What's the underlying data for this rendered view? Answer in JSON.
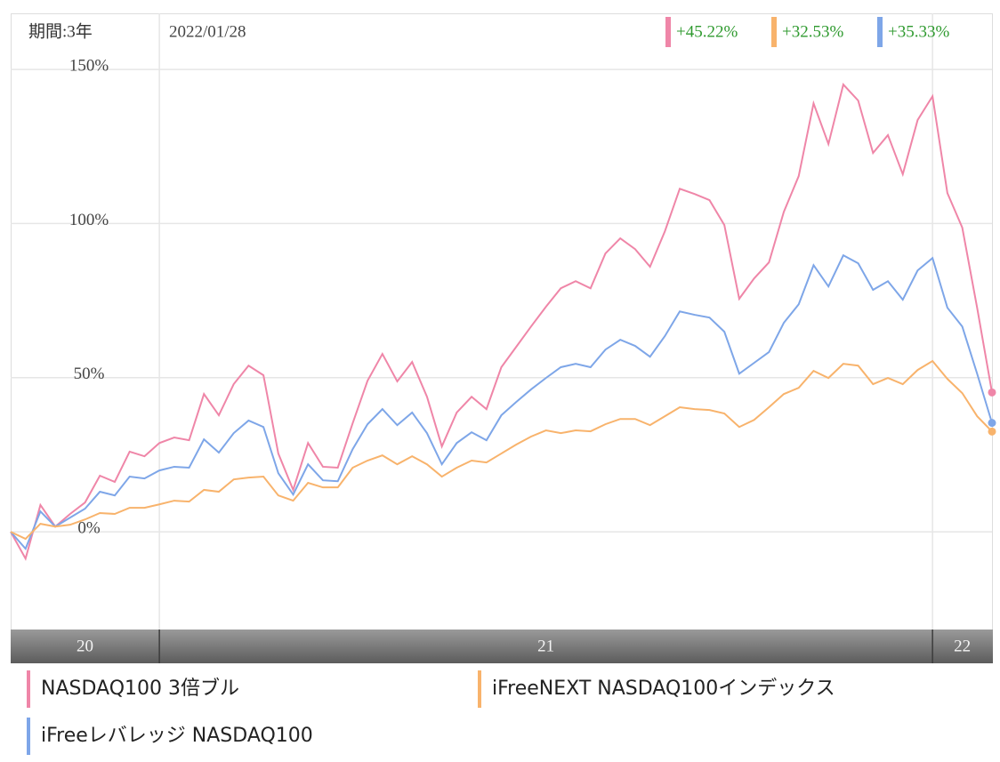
{
  "chart_data": {
    "type": "line",
    "period": "期間:3年",
    "date": "2022/01/28",
    "x": [
      0,
      1,
      2,
      3,
      4,
      5,
      6,
      7,
      8,
      9,
      10,
      11,
      12,
      13,
      14,
      15,
      16,
      17,
      18,
      19,
      20,
      21,
      22,
      23,
      24,
      25,
      26,
      27,
      28,
      29,
      30,
      31,
      32,
      33,
      34,
      35,
      36,
      37,
      38,
      39,
      40,
      41,
      42,
      43,
      44,
      45,
      46,
      47,
      48,
      49,
      50,
      51,
      52,
      53,
      54,
      55,
      56,
      57,
      58,
      59,
      60,
      61,
      62,
      63,
      64,
      65,
      66
    ],
    "xlim": [
      0,
      66
    ],
    "x_bands": [
      {
        "label": "20",
        "start": 0,
        "end": 10
      },
      {
        "label": "21",
        "start": 10,
        "end": 62
      },
      {
        "label": "22",
        "start": 62,
        "end": 66
      }
    ],
    "ylim": [
      -31.7,
      168.2
    ],
    "yticks": [
      {
        "value": 0,
        "label": "0%"
      },
      {
        "value": 50,
        "label": "50%"
      },
      {
        "value": 100,
        "label": "100%"
      },
      {
        "value": 150,
        "label": "150%"
      }
    ],
    "grid": true,
    "series": [
      {
        "name": "NASDAQ100 3倍ブル",
        "color": "#ef86a8",
        "end_label": "+45.22%",
        "values": [
          0,
          -8.7,
          8.7,
          1.7,
          5.8,
          9.5,
          18.2,
          16.2,
          26.0,
          24.5,
          28.8,
          30.6,
          29.7,
          44.7,
          37.8,
          47.9,
          53.9,
          50.8,
          25.4,
          13.6,
          28.8,
          21.1,
          20.8,
          35.2,
          49.0,
          57.7,
          48.8,
          55.1,
          43.8,
          27.7,
          38.7,
          43.8,
          39.8,
          53.4,
          60.0,
          66.6,
          73.0,
          79.0,
          81.3,
          79.0,
          90.3,
          95.2,
          91.7,
          86.0,
          97.5,
          111.3,
          109.6,
          107.6,
          99.5,
          75.6,
          82.2,
          87.4,
          103.8,
          115.4,
          139.0,
          125.8,
          145.1,
          139.9,
          122.9,
          128.7,
          116.0,
          133.6,
          141.3,
          109.9,
          98.7,
          72.7,
          45.22
        ]
      },
      {
        "name": "iFreeレバレッジ NASDAQ100",
        "color": "#7ea6e8",
        "end_label": "+35.33%",
        "values": [
          0,
          -5.5,
          6.6,
          1.7,
          4.6,
          7.5,
          13.0,
          11.8,
          17.9,
          17.3,
          19.9,
          21.1,
          20.8,
          30.0,
          25.7,
          32.0,
          36.1,
          34.0,
          19.0,
          12.1,
          21.9,
          16.7,
          16.4,
          26.8,
          34.9,
          39.8,
          34.6,
          38.7,
          32.0,
          21.9,
          28.8,
          32.3,
          29.7,
          37.8,
          42.1,
          46.2,
          49.9,
          53.4,
          54.5,
          53.4,
          59.1,
          62.3,
          60.3,
          56.8,
          63.5,
          71.5,
          70.4,
          69.5,
          64.9,
          51.3,
          54.8,
          58.3,
          67.8,
          73.8,
          86.5,
          79.6,
          89.7,
          87.1,
          78.5,
          81.3,
          75.3,
          84.8,
          88.8,
          72.7,
          66.6,
          51.3,
          35.33
        ]
      },
      {
        "name": "iFreeNEXT NASDAQ100インデックス",
        "color": "#f8b36c",
        "end_label": "+32.53%",
        "values": [
          0,
          -2.3,
          2.6,
          1.7,
          2.3,
          4.0,
          6.1,
          5.8,
          7.8,
          7.8,
          8.9,
          10.1,
          9.8,
          13.6,
          13.0,
          17.0,
          17.6,
          17.9,
          11.8,
          10.1,
          15.9,
          14.4,
          14.4,
          20.8,
          23.1,
          24.8,
          21.9,
          24.5,
          21.9,
          17.9,
          20.8,
          23.1,
          22.5,
          25.4,
          28.3,
          30.9,
          32.9,
          32.0,
          32.9,
          32.6,
          34.9,
          36.6,
          36.6,
          34.6,
          37.5,
          40.4,
          39.8,
          39.5,
          38.4,
          34.0,
          36.3,
          40.4,
          44.7,
          46.7,
          52.2,
          49.9,
          54.5,
          53.9,
          47.9,
          49.9,
          47.9,
          52.5,
          55.4,
          49.6,
          45.0,
          37.5,
          32.53
        ]
      }
    ]
  }
}
